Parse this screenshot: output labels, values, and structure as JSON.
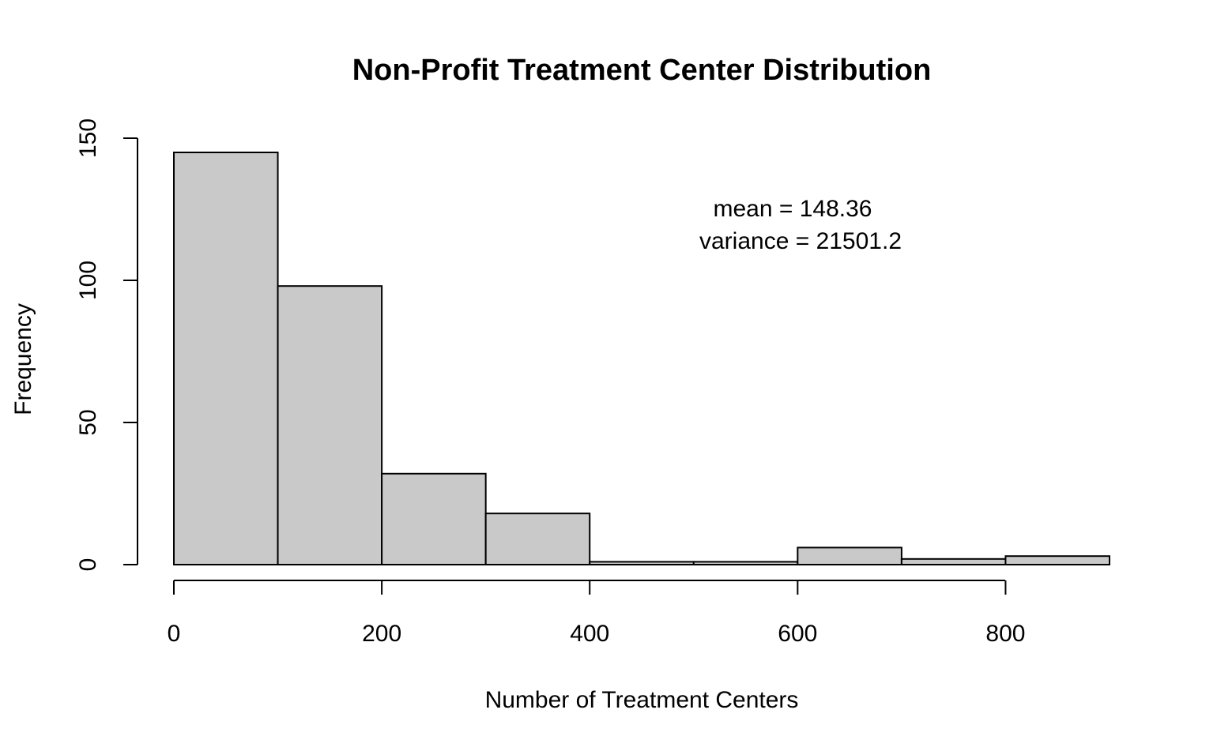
{
  "chart_data": {
    "type": "bar",
    "title": "Non-Profit Treatment Center Distribution",
    "xlabel": "Number of Treatment Centers",
    "ylabel": "Frequency",
    "bin_edges": [
      0,
      100,
      200,
      300,
      400,
      500,
      600,
      700,
      800,
      900
    ],
    "values": [
      145,
      98,
      32,
      18,
      1,
      1,
      6,
      2,
      3
    ],
    "xlim": [
      0,
      900
    ],
    "ylim": [
      0,
      150
    ],
    "x_ticks": [
      0,
      200,
      400,
      600,
      800
    ],
    "y_ticks": [
      0,
      50,
      100,
      150
    ],
    "annotations": [
      "mean =  148.36",
      "variance =  21501.2"
    ],
    "grid": false,
    "bar_color": "#c9c9c9",
    "border_color": "#000000"
  }
}
